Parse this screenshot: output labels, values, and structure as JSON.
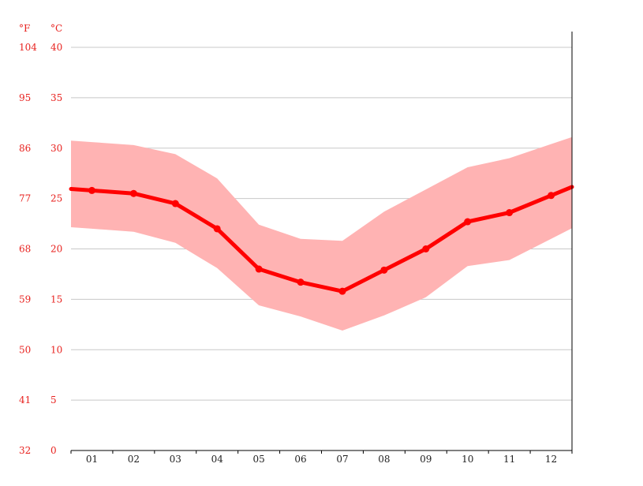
{
  "chart_data": {
    "type": "area",
    "title": "",
    "xlabel": "",
    "ylabel": "",
    "units": {
      "fahrenheit": "°F",
      "celsius": "°C"
    },
    "categories": [
      "01",
      "02",
      "03",
      "04",
      "05",
      "06",
      "07",
      "08",
      "09",
      "10",
      "11",
      "12"
    ],
    "yticks_celsius": [
      "40",
      "35",
      "30",
      "25",
      "20",
      "15",
      "10",
      "5",
      "0"
    ],
    "yticks_fahrenheit": [
      "104",
      "95",
      "86",
      "77",
      "68",
      "59",
      "50",
      "41",
      "32"
    ],
    "ylim": [
      0,
      40
    ],
    "grid": true,
    "series": [
      {
        "kind": "line",
        "values": [
          25.8,
          25.5,
          24.5,
          22.0,
          18.0,
          16.7,
          15.8,
          17.9,
          20.0,
          22.7,
          23.6,
          25.3
        ]
      },
      {
        "kind": "band-max",
        "values": [
          30.6,
          30.3,
          29.4,
          27.0,
          22.4,
          21.0,
          20.8,
          23.7,
          25.9,
          28.1,
          29.0,
          30.4
        ]
      },
      {
        "kind": "band-min",
        "values": [
          22.0,
          21.7,
          20.6,
          18.1,
          14.4,
          13.3,
          11.9,
          13.4,
          15.2,
          18.3,
          18.9,
          21.0
        ]
      }
    ],
    "colors": {
      "line": "#ff0000",
      "band": "#ffb3b3",
      "grid": "#c8c8c8",
      "axis": "#000000",
      "tick_text": "#e8221f"
    }
  }
}
